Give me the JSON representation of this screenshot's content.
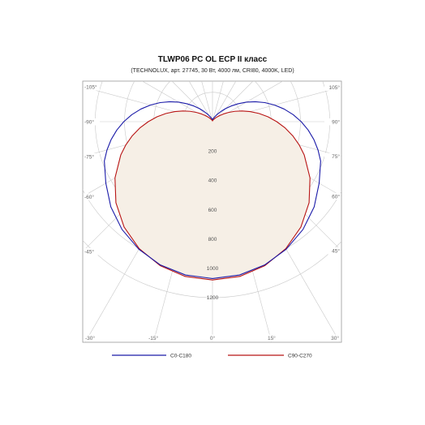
{
  "chart_data": {
    "type": "polar",
    "title": "TLWP06 PC OL ECP II класс",
    "subtitle": "(TECHNOLUX, арт. 27745, 30 Вт, 4000 лм, CRI80, 4000K, LED)",
    "radial_ticks": [
      "200",
      "400",
      "600",
      "800",
      "1000",
      "1200"
    ],
    "radial_values": [
      200,
      400,
      600,
      800,
      1000,
      1200
    ],
    "angle_labels_left": [
      {
        "label": "-105°",
        "angle": -105
      },
      {
        "label": "-90°",
        "angle": -90
      },
      {
        "label": "-75°",
        "angle": -75
      },
      {
        "label": "-60°",
        "angle": -60
      },
      {
        "label": "-45°",
        "angle": -45
      },
      {
        "label": "-30°",
        "angle": -30
      },
      {
        "label": "-15°",
        "angle": -15
      }
    ],
    "angle_labels_right": [
      {
        "label": "105°",
        "angle": 105
      },
      {
        "label": "90°",
        "angle": 90
      },
      {
        "label": "75°",
        "angle": 75
      },
      {
        "label": "60°",
        "angle": 60
      },
      {
        "label": "45°",
        "angle": 45
      },
      {
        "label": "30°",
        "angle": 30
      },
      {
        "label": "15°",
        "angle": 15
      }
    ],
    "angle_label_zero": "0°",
    "series": [
      {
        "name": "C0-C180",
        "color": "#1a1aa8",
        "angles": [
          0,
          10,
          20,
          30,
          40,
          50,
          60,
          70,
          75,
          80,
          85,
          90,
          95,
          100,
          105,
          110,
          115,
          120,
          125,
          130,
          135,
          140,
          145,
          150,
          155,
          160,
          165,
          170,
          175,
          180
        ],
        "values": [
          1070,
          1062,
          1040,
          1005,
          960,
          905,
          840,
          785,
          745,
          702,
          655,
          605,
          552,
          496,
          438,
          380,
          322,
          266,
          213,
          166,
          126,
          92,
          67,
          49,
          37,
          29,
          23,
          19,
          16,
          14
        ]
      },
      {
        "name": "C90-C270",
        "color": "#b81414",
        "angles": [
          0,
          10,
          20,
          30,
          40,
          50,
          60,
          70,
          75,
          80,
          85,
          90,
          95,
          100,
          105,
          110,
          115,
          120,
          125,
          130,
          135,
          140,
          145,
          150,
          155,
          160,
          165,
          170,
          175,
          180
        ],
        "values": [
          1080,
          1072,
          1045,
          1000,
          938,
          860,
          768,
          666,
          612,
          556,
          498,
          438,
          380,
          322,
          266,
          214,
          167,
          126,
          92,
          66,
          47,
          34,
          25,
          19,
          15,
          12,
          10,
          8,
          6,
          5
        ]
      }
    ],
    "rmax": 1300,
    "legend_position": "bottom"
  }
}
